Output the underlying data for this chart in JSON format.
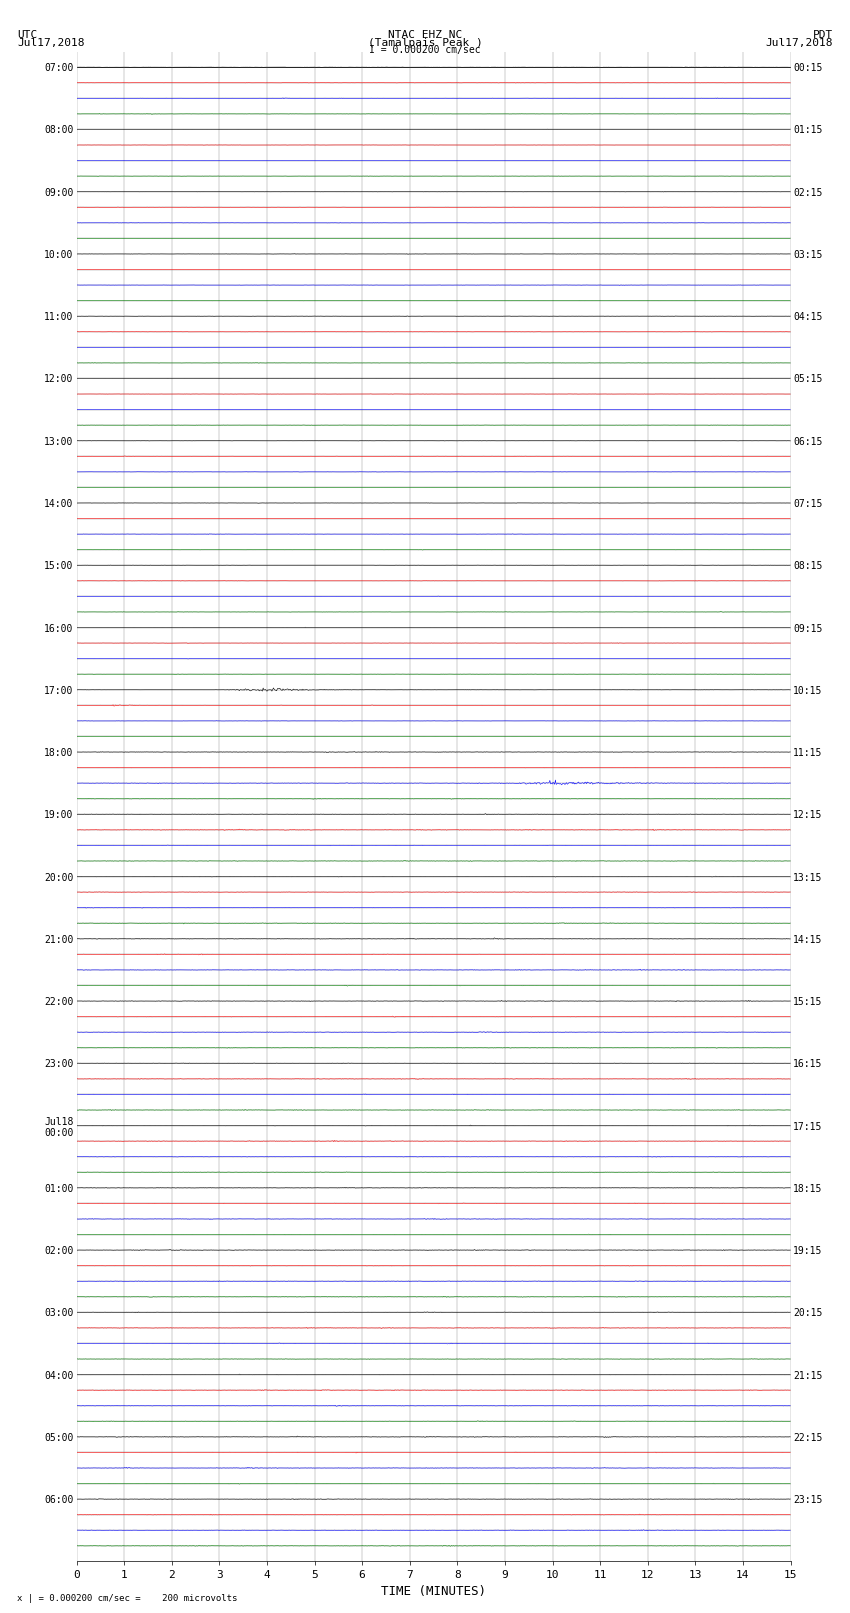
{
  "title_line1": "NTAC EHZ NC",
  "title_line2": "(Tamalpais Peak )",
  "title_line3": "I = 0.000200 cm/sec",
  "left_header_line1": "UTC",
  "left_header_line2": "Jul17,2018",
  "right_header_line1": "PDT",
  "right_header_line2": "Jul17,2018",
  "footer_text": "x | = 0.000200 cm/sec =    200 microvolts",
  "xlabel": "TIME (MINUTES)",
  "colors_cycle": [
    "black",
    "red",
    "blue",
    "green"
  ],
  "num_traces": 96,
  "trace_duration_minutes": 15,
  "samples_per_trace": 900,
  "figure_width": 8.5,
  "figure_height": 16.13,
  "dpi": 100,
  "background_color": "white",
  "grid_color": "#888888",
  "trace_linewidth": 0.4,
  "utc_times_labeled": [
    "07:00",
    "08:00",
    "09:00",
    "10:00",
    "11:00",
    "12:00",
    "13:00",
    "14:00",
    "15:00",
    "16:00",
    "17:00",
    "18:00",
    "19:00",
    "20:00",
    "21:00",
    "22:00",
    "23:00",
    "Jul18\n00:00",
    "01:00",
    "02:00",
    "03:00",
    "04:00",
    "05:00",
    "06:00"
  ],
  "pdt_times_labeled": [
    "00:15",
    "01:15",
    "02:15",
    "03:15",
    "04:15",
    "05:15",
    "06:15",
    "07:15",
    "08:15",
    "09:15",
    "10:15",
    "11:15",
    "12:15",
    "13:15",
    "14:15",
    "15:15",
    "16:15",
    "17:15",
    "18:15",
    "19:15",
    "20:15",
    "21:15",
    "22:15",
    "23:15"
  ],
  "xlabel_fontsize": 8,
  "tick_fontsize": 7,
  "header_fontsize": 8,
  "title_fontsize": 8,
  "noise_base": 0.008,
  "noise_scale": 0.35
}
